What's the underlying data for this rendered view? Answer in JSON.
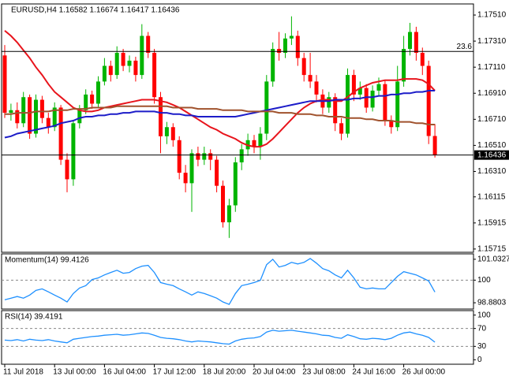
{
  "chart_data": [
    {
      "type": "candlestick",
      "title": "EURUSD,H4 1.16582 1.16674 1.16417 1.16436",
      "categories": [
        "11 Jul 2018",
        null,
        null,
        null,
        null,
        null,
        null,
        null,
        "13 Jul 00:00",
        null,
        null,
        null,
        null,
        null,
        null,
        null,
        "16 Jul 04:00",
        null,
        null,
        null,
        null,
        null,
        null,
        null,
        "17 Jul 12:00",
        null,
        null,
        null,
        null,
        null,
        null,
        null,
        "18 Jul 20:00",
        null,
        null,
        null,
        null,
        null,
        null,
        null,
        "20 Jul 04:00",
        null,
        null,
        null,
        null,
        null,
        null,
        null,
        "23 Jul 08:00",
        null,
        null,
        null,
        null,
        null,
        null,
        null,
        "24 Jul 16:00",
        null,
        null,
        null,
        null,
        null,
        null,
        null,
        "26 Jul 00:00",
        null,
        null,
        null,
        null,
        null
      ],
      "open": [
        1.172,
        1.1676,
        1.1678,
        1.1668,
        1.1688,
        1.166,
        1.1686,
        1.1672,
        1.1665,
        1.168,
        1.164,
        1.1625,
        1.1668,
        1.1678,
        1.169,
        1.1683,
        1.17,
        1.1712,
        1.1705,
        1.1722,
        1.1712,
        1.1716,
        1.1705,
        1.1735,
        1.1722,
        1.1688,
        1.1658,
        1.1665,
        1.1655,
        1.163,
        1.1622,
        1.1645,
        1.164,
        1.1645,
        1.164,
        1.162,
        1.1592,
        1.1605,
        1.1638,
        1.1648,
        1.1655,
        1.165,
        1.166,
        1.17,
        1.1725,
        1.1722,
        1.1733,
        1.1735,
        1.1718,
        1.1705,
        1.17,
        1.169,
        1.168,
        1.1688,
        1.1668,
        1.166,
        1.1705,
        1.169,
        1.1695,
        1.168,
        1.1693,
        1.1698,
        1.167,
        1.1665,
        1.17,
        1.1725,
        1.1738,
        1.1722,
        1.1712,
        1.16582
      ],
      "high": [
        1.1728,
        1.1683,
        1.1684,
        1.1692,
        1.169,
        1.169,
        1.1689,
        1.1676,
        1.1684,
        1.1682,
        1.1645,
        1.167,
        1.1682,
        1.1694,
        1.1693,
        1.1704,
        1.1718,
        1.1716,
        1.1727,
        1.1725,
        1.172,
        1.1719,
        1.1744,
        1.1738,
        1.1725,
        1.1692,
        1.1669,
        1.1668,
        1.1658,
        1.1636,
        1.1648,
        1.165,
        1.165,
        1.1648,
        1.1643,
        1.1624,
        1.161,
        1.1642,
        1.1652,
        1.166,
        1.1659,
        1.1665,
        1.1705,
        1.173,
        1.1738,
        1.1737,
        1.175,
        1.1739,
        1.1722,
        1.1722,
        1.1705,
        1.1694,
        1.1692,
        1.1691,
        1.1672,
        1.171,
        1.1709,
        1.17,
        1.1698,
        1.1697,
        1.1703,
        1.1701,
        1.1674,
        1.1712,
        1.1735,
        1.1745,
        1.1742,
        1.1726,
        1.1716,
        1.16674
      ],
      "low": [
        1.1672,
        1.167,
        1.1664,
        1.1665,
        1.1656,
        1.1657,
        1.1668,
        1.166,
        1.1662,
        1.1636,
        1.1615,
        1.162,
        1.1664,
        1.1675,
        1.1679,
        1.168,
        1.1697,
        1.17,
        1.1702,
        1.1708,
        1.1707,
        1.17,
        1.1702,
        1.1718,
        1.1683,
        1.1645,
        1.1652,
        1.165,
        1.1625,
        1.1615,
        1.16,
        1.1635,
        1.1636,
        1.1632,
        1.1615,
        1.1588,
        1.158,
        1.16,
        1.1632,
        1.1643,
        1.1645,
        1.164,
        1.1655,
        1.1696,
        1.1716,
        1.1718,
        1.1728,
        1.1712,
        1.17,
        1.1695,
        1.1684,
        1.1675,
        1.1676,
        1.1662,
        1.1655,
        1.1657,
        1.1685,
        1.1686,
        1.1676,
        1.1677,
        1.1689,
        1.1666,
        1.166,
        1.1662,
        1.1696,
        1.172,
        1.1716,
        1.1705,
        1.1652,
        1.16417
      ],
      "close": [
        1.1676,
        1.1678,
        1.1668,
        1.1688,
        1.166,
        1.1686,
        1.1672,
        1.1665,
        1.168,
        1.164,
        1.1625,
        1.1668,
        1.1678,
        1.169,
        1.1683,
        1.17,
        1.1712,
        1.1705,
        1.1722,
        1.1712,
        1.1716,
        1.1705,
        1.1735,
        1.1722,
        1.1688,
        1.1658,
        1.1665,
        1.1655,
        1.163,
        1.1622,
        1.1645,
        1.164,
        1.1645,
        1.164,
        1.162,
        1.1592,
        1.1605,
        1.1638,
        1.1648,
        1.1655,
        1.165,
        1.166,
        1.17,
        1.1725,
        1.1722,
        1.1733,
        1.1735,
        1.1718,
        1.1705,
        1.17,
        1.169,
        1.168,
        1.1688,
        1.1668,
        1.166,
        1.1705,
        1.169,
        1.1695,
        1.168,
        1.1693,
        1.1698,
        1.167,
        1.1665,
        1.17,
        1.1725,
        1.1738,
        1.1722,
        1.1712,
        1.16582,
        1.16436
      ],
      "up_color": "#00b400",
      "down_color": "#ff0000",
      "series": [
        {
          "color": "#e8141c",
          "values": [
            1.1739,
            1.1735,
            1.173,
            1.1724,
            1.1718,
            1.1711,
            1.1705,
            1.1698,
            1.1692,
            1.1688,
            1.1684,
            1.168,
            1.1678,
            1.1677,
            1.1677,
            1.1678,
            1.168,
            1.1681,
            1.1682,
            1.1683,
            1.1684,
            1.1685,
            1.1686,
            1.1686,
            1.1686,
            1.1685,
            1.1684,
            1.1682,
            1.168,
            1.1677,
            1.1674,
            1.1671,
            1.1668,
            1.1665,
            1.1663,
            1.166,
            1.1658,
            1.1656,
            1.1653,
            1.1651,
            1.165,
            1.165,
            1.1652,
            1.1656,
            1.1661,
            1.1666,
            1.1671,
            1.1676,
            1.168,
            1.1683,
            1.1685,
            1.1686,
            1.1686,
            1.1685,
            1.1685,
            1.1688,
            1.1692,
            1.1695,
            1.1697,
            1.1699,
            1.17,
            1.1701,
            1.1701,
            1.1701,
            1.1702,
            1.1702,
            1.1702,
            1.1701,
            1.1698,
            1.1693
          ]
        },
        {
          "color": "#1c1cc8",
          "values": [
            1.1657,
            1.1658,
            1.166,
            1.1661,
            1.1662,
            1.1663,
            1.1664,
            1.1665,
            1.1666,
            1.1668,
            1.1669,
            1.167,
            1.1672,
            1.1673,
            1.1673,
            1.1674,
            1.1674,
            1.1675,
            1.1675,
            1.1676,
            1.1676,
            1.1677,
            1.1677,
            1.1677,
            1.1677,
            1.1676,
            1.1676,
            1.1675,
            1.1675,
            1.1674,
            1.1674,
            1.1673,
            1.1673,
            1.1673,
            1.1673,
            1.1673,
            1.1673,
            1.1673,
            1.1674,
            1.1675,
            1.1676,
            1.1677,
            1.1678,
            1.1679,
            1.168,
            1.1681,
            1.1682,
            1.1683,
            1.1684,
            1.1685,
            1.1685,
            1.1685,
            1.1685,
            1.1686,
            1.1686,
            1.1686,
            1.1687,
            1.1687,
            1.1688,
            1.1688,
            1.1689,
            1.1689,
            1.169,
            1.169,
            1.1691,
            1.1691,
            1.1692,
            1.1692,
            1.1693,
            1.1693
          ]
        },
        {
          "color": "#a0522d",
          "values": [
            1.1675,
            1.1675,
            1.1676,
            1.1676,
            1.1676,
            1.1677,
            1.1677,
            1.1677,
            1.1678,
            1.1678,
            1.1678,
            1.1679,
            1.1679,
            1.1679,
            1.168,
            1.168,
            1.168,
            1.168,
            1.1681,
            1.1681,
            1.1681,
            1.1681,
            1.1681,
            1.1681,
            1.1681,
            1.1681,
            1.1681,
            1.168,
            1.168,
            1.168,
            1.168,
            1.1679,
            1.1679,
            1.1679,
            1.1679,
            1.1678,
            1.1678,
            1.1678,
            1.1678,
            1.1677,
            1.1677,
            1.1677,
            1.1677,
            1.1677,
            1.1676,
            1.1676,
            1.1676,
            1.1675,
            1.1675,
            1.1675,
            1.1674,
            1.1674,
            1.1673,
            1.1673,
            1.1673,
            1.1672,
            1.1672,
            1.1672,
            1.1671,
            1.1671,
            1.167,
            1.167,
            1.167,
            1.1669,
            1.1669,
            1.1669,
            1.1668,
            1.1668,
            1.1667,
            1.1667
          ]
        }
      ],
      "ylim": [
        1.1569,
        1.17595
      ],
      "yticks": [
        {
          "value": 1.1751,
          "label": "1.17510"
        },
        {
          "value": 1.1731,
          "label": "1.17310"
        },
        {
          "value": 1.1711,
          "label": "1.17110"
        },
        {
          "value": 1.1691,
          "label": "1.16910"
        },
        {
          "value": 1.1671,
          "label": "1.16710"
        },
        {
          "value": 1.1651,
          "label": "1.16510"
        },
        {
          "value": 1.1631,
          "label": "1.16310"
        },
        1.16115,
        1.15915,
        1.15715
      ],
      "hlines": [
        {
          "value": 1.17231,
          "label": "23.6"
        }
      ],
      "last_price": 1.16436
    },
    {
      "type": "line",
      "title": "Momentum(14) 99.4126",
      "color": "#1e90ff",
      "values": [
        99.03,
        99.11,
        99.19,
        99.11,
        99.26,
        99.49,
        99.57,
        99.42,
        99.26,
        99.11,
        98.92,
        99.34,
        99.61,
        99.73,
        100.03,
        100.11,
        100.26,
        100.38,
        100.49,
        100.34,
        100.38,
        100.57,
        100.69,
        100.73,
        100.38,
        99.88,
        99.8,
        99.73,
        99.57,
        99.42,
        99.26,
        99.42,
        99.34,
        99.23,
        99.11,
        98.92,
        98.8,
        99.34,
        99.73,
        99.8,
        99.88,
        99.99,
        100.76,
        101.03,
        100.65,
        100.73,
        100.88,
        100.8,
        100.88,
        101.07,
        100.84,
        100.57,
        100.46,
        100.26,
        100.11,
        100.49,
        100.11,
        99.65,
        99.57,
        99.61,
        99.57,
        99.57,
        99.88,
        100.19,
        100.42,
        100.34,
        100.26,
        100.11,
        99.96,
        99.4126
      ],
      "ylim": [
        98.57,
        101.3
      ],
      "yticks": [
        101.0327,
        100,
        98.8803
      ],
      "levels": [
        100
      ]
    },
    {
      "type": "line",
      "title": "RSI(14) 39.4191",
      "color": "#1e90ff",
      "values": [
        44,
        43,
        45,
        42,
        46,
        44,
        43,
        45,
        42,
        40,
        38,
        46,
        48,
        50,
        52,
        53,
        55,
        56,
        57,
        55,
        56,
        58,
        60,
        59,
        55,
        50,
        48,
        47,
        45,
        42,
        40,
        42,
        41,
        40,
        38,
        36,
        35,
        42,
        46,
        48,
        49,
        52,
        62,
        66,
        64,
        65,
        66,
        64,
        62,
        60,
        58,
        55,
        54,
        50,
        48,
        56,
        52,
        47,
        46,
        48,
        47,
        45,
        48,
        55,
        60,
        62,
        58,
        55,
        50,
        39.4191
      ],
      "ylim": [
        -10,
        110
      ],
      "yticks": [
        100,
        70,
        30,
        0
      ],
      "levels": [
        70,
        30
      ]
    }
  ]
}
